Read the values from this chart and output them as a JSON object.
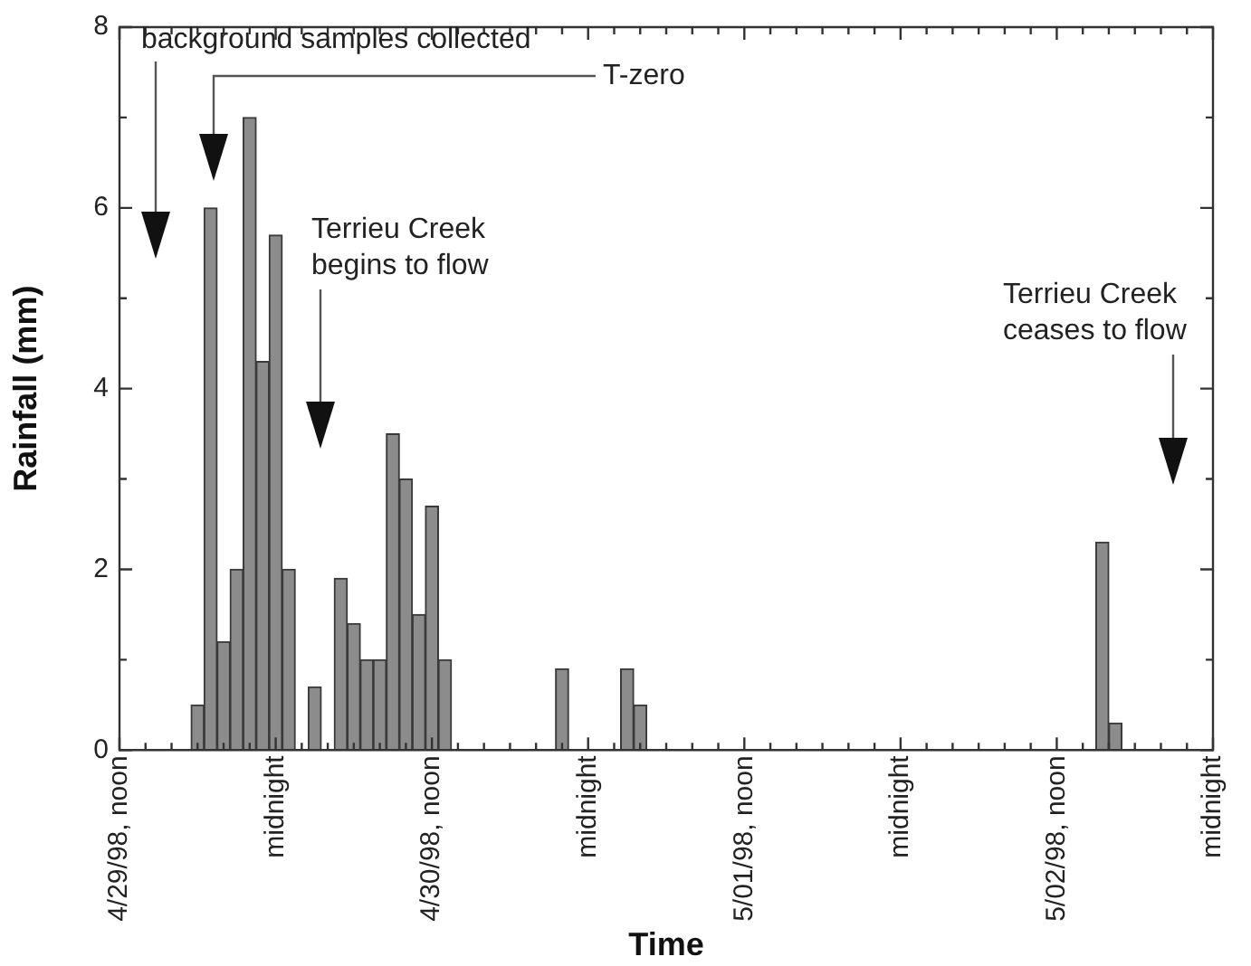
{
  "chart_data": {
    "type": "bar",
    "xlabel": "Time",
    "ylabel": "Rainfall (mm)",
    "x": [
      "1998-04-29T18:00",
      "1998-04-29T19:00",
      "1998-04-29T20:00",
      "1998-04-29T21:00",
      "1998-04-29T22:00",
      "1998-04-29T23:00",
      "1998-04-30T00:00",
      "1998-04-30T01:00",
      "1998-04-30T03:00",
      "1998-04-30T05:00",
      "1998-04-30T06:00",
      "1998-04-30T07:00",
      "1998-04-30T08:00",
      "1998-04-30T09:00",
      "1998-04-30T10:00",
      "1998-04-30T11:00",
      "1998-04-30T12:00",
      "1998-04-30T13:00",
      "1998-04-30T22:00",
      "1998-05-01T03:00",
      "1998-05-01T04:00",
      "1998-05-02T15:30",
      "1998-05-02T16:30"
    ],
    "values": [
      0.5,
      6.0,
      1.2,
      2.0,
      7.0,
      4.3,
      5.7,
      2.0,
      0.7,
      1.9,
      1.4,
      1.0,
      1.0,
      3.5,
      3.0,
      1.5,
      2.7,
      1.0,
      0.9,
      0.9,
      0.5,
      2.3,
      0.3
    ],
    "color": "#8c8c8c",
    "xlim": [
      "1998-04-29T12:00",
      "1998-05-03T00:00"
    ],
    "xticks": [
      {
        "value": "1998-04-29T12:00",
        "label": "4/29/98, noon"
      },
      {
        "value": "1998-04-29T14:00",
        "label": null
      },
      {
        "value": "1998-04-29T16:00",
        "label": null
      },
      {
        "value": "1998-04-29T18:00",
        "label": null
      },
      {
        "value": "1998-04-29T20:00",
        "label": null
      },
      {
        "value": "1998-04-29T22:00",
        "label": null
      },
      {
        "value": "1998-04-30T00:00",
        "label": "midnight"
      },
      {
        "value": "1998-04-30T02:00",
        "label": null
      },
      {
        "value": "1998-04-30T04:00",
        "label": null
      },
      {
        "value": "1998-04-30T06:00",
        "label": null
      },
      {
        "value": "1998-04-30T08:00",
        "label": null
      },
      {
        "value": "1998-04-30T10:00",
        "label": null
      },
      {
        "value": "1998-04-30T12:00",
        "label": "4/30/98, noon"
      },
      {
        "value": "1998-04-30T14:00",
        "label": null
      },
      {
        "value": "1998-04-30T16:00",
        "label": null
      },
      {
        "value": "1998-04-30T18:00",
        "label": null
      },
      {
        "value": "1998-04-30T20:00",
        "label": null
      },
      {
        "value": "1998-04-30T22:00",
        "label": null
      },
      {
        "value": "1998-05-01T00:00",
        "label": "midnight"
      },
      {
        "value": "1998-05-01T02:00",
        "label": null
      },
      {
        "value": "1998-05-01T04:00",
        "label": null
      },
      {
        "value": "1998-05-01T06:00",
        "label": null
      },
      {
        "value": "1998-05-01T08:00",
        "label": null
      },
      {
        "value": "1998-05-01T10:00",
        "label": null
      },
      {
        "value": "1998-05-01T12:00",
        "label": "5/01/98, noon"
      },
      {
        "value": "1998-05-01T14:00",
        "label": null
      },
      {
        "value": "1998-05-01T16:00",
        "label": null
      },
      {
        "value": "1998-05-01T18:00",
        "label": null
      },
      {
        "value": "1998-05-01T20:00",
        "label": null
      },
      {
        "value": "1998-05-01T22:00",
        "label": null
      },
      {
        "value": "1998-05-02T00:00",
        "label": "midnight"
      },
      {
        "value": "1998-05-02T02:00",
        "label": null
      },
      {
        "value": "1998-05-02T04:00",
        "label": null
      },
      {
        "value": "1998-05-02T06:00",
        "label": null
      },
      {
        "value": "1998-05-02T08:00",
        "label": null
      },
      {
        "value": "1998-05-02T10:00",
        "label": null
      },
      {
        "value": "1998-05-02T12:00",
        "label": "5/02/98, noon"
      },
      {
        "value": "1998-05-02T14:00",
        "label": null
      },
      {
        "value": "1998-05-02T16:00",
        "label": null
      },
      {
        "value": "1998-05-02T18:00",
        "label": null
      },
      {
        "value": "1998-05-02T20:00",
        "label": null
      },
      {
        "value": "1998-05-02T22:00",
        "label": null
      },
      {
        "value": "1998-05-03T00:00",
        "label": "midnight"
      }
    ],
    "ylim": [
      0,
      8
    ],
    "yticks": [
      0,
      {
        "value": 1,
        "label": null
      },
      2,
      {
        "value": 3,
        "label": null
      },
      4,
      {
        "value": 5,
        "label": null
      },
      6,
      {
        "value": 7,
        "label": null
      },
      8
    ],
    "grid": false,
    "legend": false,
    "annotations": [
      "background samples collected",
      "T-zero",
      "Terrieu Creek\nbegins to flow",
      "Terrieu Creek\nceases to flow"
    ]
  }
}
